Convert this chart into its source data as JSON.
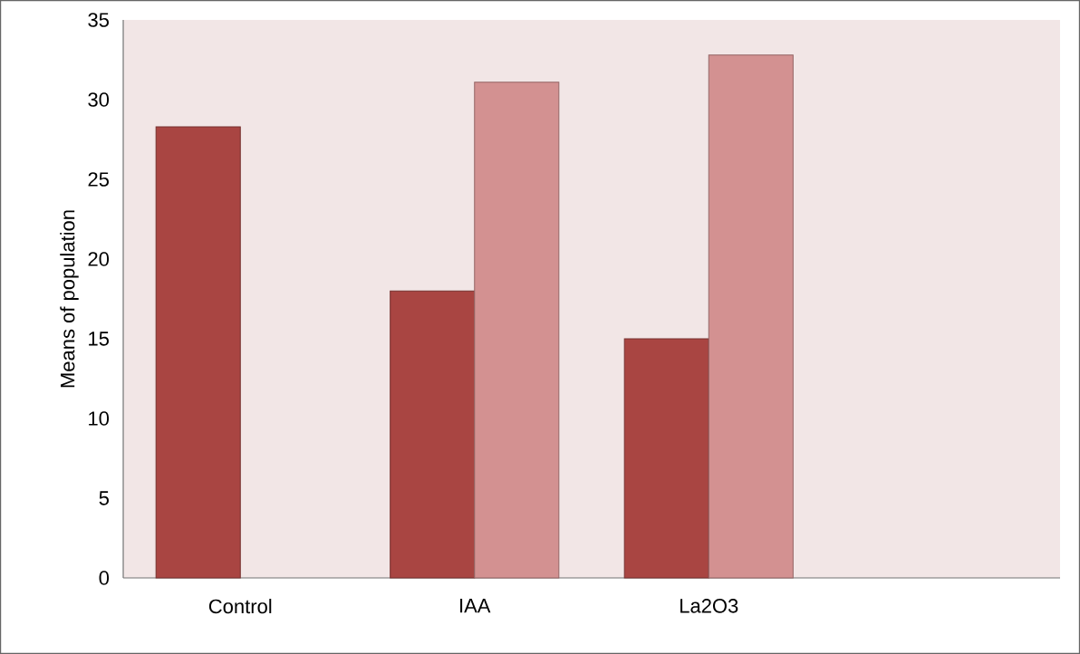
{
  "chart_data": {
    "type": "bar",
    "ylabel": "Means of population",
    "categories": [
      "Control",
      "IAA",
      "La2O3",
      null
    ],
    "series": [
      {
        "color": "#a94542",
        "values": [
          28.3,
          18,
          15,
          null
        ]
      },
      {
        "color": "#d39191",
        "values": [
          null,
          31.1,
          32.8,
          null
        ]
      }
    ],
    "ylim": [
      0,
      35
    ],
    "yticks": [
      0,
      5,
      10,
      15,
      20,
      25,
      30,
      35
    ],
    "grid": false
  }
}
